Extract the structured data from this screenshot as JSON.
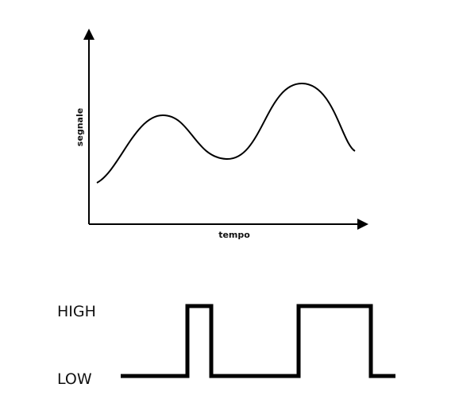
{
  "analog": {
    "y_label": "segnale",
    "x_label": "tempo"
  },
  "digital": {
    "high_label": "HIGH",
    "low_label": "LOW"
  }
}
